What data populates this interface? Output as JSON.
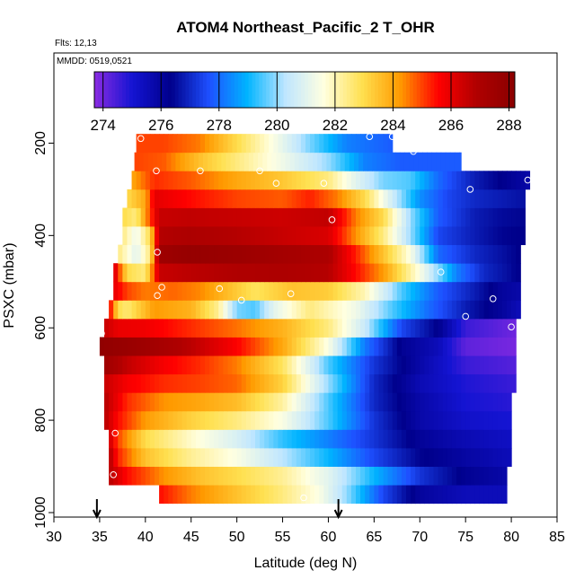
{
  "chart_data": {
    "type": "heatmap",
    "title": "ATOM4 Northeast_Pacific_2 T_OHR",
    "flights_label": "Flts: 12,13",
    "date_label": "MMDD: 0519,0521",
    "xlabel": "Latitude (deg N)",
    "ylabel": "PSXC (mbar)",
    "xlim": [
      30,
      85
    ],
    "ylim": [
      1000,
      0
    ],
    "x_ticks": [
      "30",
      "35",
      "40",
      "45",
      "50",
      "55",
      "60",
      "65",
      "70",
      "75",
      "80",
      "85"
    ],
    "y_ticks": [
      "200",
      "400",
      "600",
      "800",
      "1000"
    ],
    "colorbar": {
      "min": 273.7,
      "max": 288.2,
      "ticks": [
        "274",
        "276",
        "278",
        "280",
        "282",
        "284",
        "286",
        "288"
      ],
      "colors": [
        "#8a2be2",
        "#1414d2",
        "#00008b",
        "#1e50ff",
        "#00b4ff",
        "#bfe6ff",
        "#ffffe0",
        "#ffe050",
        "#ff9a00",
        "#ff0000",
        "#b00000",
        "#8b0000"
      ]
    },
    "bands": [
      {
        "p": 960,
        "xmin": 41.5,
        "xmax": 79.5,
        "nodes": [
          [
            41.5,
            285.5
          ],
          [
            45,
            284.5
          ],
          [
            50,
            283.5
          ],
          [
            55,
            282.5
          ],
          [
            59,
            281.5
          ],
          [
            62,
            280
          ],
          [
            66,
            277.5
          ],
          [
            70,
            276
          ],
          [
            75,
            275.5
          ],
          [
            79.5,
            275.5
          ]
        ]
      },
      {
        "p": 920,
        "xmin": 36,
        "xmax": 79.5,
        "nodes": [
          [
            36,
            286.8
          ],
          [
            38,
            285.5
          ],
          [
            42,
            284.3
          ],
          [
            46,
            283.5
          ],
          [
            50,
            283
          ],
          [
            55,
            282.3
          ],
          [
            60,
            281
          ],
          [
            65,
            279
          ],
          [
            70,
            277.2
          ],
          [
            75,
            276.2
          ],
          [
            79.5,
            275.8
          ]
        ]
      },
      {
        "p": 880,
        "xmin": 36,
        "xmax": 80,
        "nodes": [
          [
            36,
            287
          ],
          [
            37,
            285.3
          ],
          [
            40,
            283.5
          ],
          [
            45,
            282.3
          ],
          [
            50,
            281.5
          ],
          [
            55,
            280.3
          ],
          [
            60,
            279
          ],
          [
            65,
            277.5
          ],
          [
            70,
            276.4
          ],
          [
            75,
            275.9
          ],
          [
            80,
            275.5
          ]
        ]
      },
      {
        "p": 840,
        "xmin": 36,
        "xmax": 80,
        "nodes": [
          [
            36,
            286.5
          ],
          [
            37,
            285
          ],
          [
            40,
            283
          ],
          [
            45,
            281.8
          ],
          [
            50,
            280.8
          ],
          [
            55,
            279.3
          ],
          [
            60,
            278.3
          ],
          [
            65,
            277.2
          ],
          [
            70,
            276.1
          ],
          [
            75,
            275.6
          ],
          [
            80,
            275.3
          ]
        ]
      },
      {
        "p": 800,
        "xmin": 35.5,
        "xmax": 80,
        "nodes": [
          [
            35.5,
            286.8
          ],
          [
            37,
            285.5
          ],
          [
            40,
            284.2
          ],
          [
            45,
            283.2
          ],
          [
            50,
            282.5
          ],
          [
            55,
            281.5
          ],
          [
            60,
            279.5
          ],
          [
            65,
            277.2
          ],
          [
            70,
            275.8
          ],
          [
            75,
            275.2
          ],
          [
            80,
            275
          ]
        ]
      },
      {
        "p": 760,
        "xmin": 35.5,
        "xmax": 80,
        "nodes": [
          [
            35.5,
            286.8
          ],
          [
            38,
            285.2
          ],
          [
            42,
            284.3
          ],
          [
            46,
            284
          ],
          [
            50,
            283.6
          ],
          [
            55,
            282.2
          ],
          [
            60,
            279.5
          ],
          [
            65,
            277
          ],
          [
            70,
            275.8
          ],
          [
            75,
            275
          ],
          [
            80,
            274.8
          ]
        ]
      },
      {
        "p": 720,
        "xmin": 35.5,
        "xmax": 80.5,
        "nodes": [
          [
            35.5,
            286.5
          ],
          [
            38,
            285.7
          ],
          [
            42,
            285.2
          ],
          [
            46,
            285
          ],
          [
            50,
            284.7
          ],
          [
            55,
            283.2
          ],
          [
            60,
            280
          ],
          [
            65,
            277
          ],
          [
            70,
            275.6
          ],
          [
            75,
            274.9
          ],
          [
            80.5,
            274.6
          ]
        ]
      },
      {
        "p": 680,
        "xmin": 35.5,
        "xmax": 80.5,
        "nodes": [
          [
            35.5,
            287.5
          ],
          [
            38,
            286.6
          ],
          [
            42,
            285.7
          ],
          [
            46,
            285.2
          ],
          [
            50,
            284.5
          ],
          [
            55,
            282.8
          ],
          [
            60,
            279.5
          ],
          [
            65,
            277.2
          ],
          [
            70,
            275.8
          ],
          [
            75,
            274.6
          ],
          [
            80.5,
            274.3
          ]
        ]
      },
      {
        "p": 640,
        "xmin": 35,
        "xmax": 80.5,
        "nodes": [
          [
            35,
            288
          ],
          [
            37,
            287.8
          ],
          [
            40,
            287.5
          ],
          [
            45,
            286.7
          ],
          [
            50,
            285.6
          ],
          [
            55,
            284
          ],
          [
            60,
            281.5
          ],
          [
            64,
            278.2
          ],
          [
            68,
            276.2
          ],
          [
            72,
            275.5
          ],
          [
            75,
            274.2
          ],
          [
            80.5,
            273.9
          ]
        ]
      },
      {
        "p": 600,
        "xmin": 35.5,
        "xmax": 80.5,
        "nodes": [
          [
            35.5,
            286.5
          ],
          [
            37,
            285.9
          ],
          [
            40,
            285.8
          ],
          [
            45,
            285.2
          ],
          [
            50,
            284.6
          ],
          [
            55,
            283.8
          ],
          [
            60,
            282.5
          ],
          [
            64,
            280.5
          ],
          [
            68,
            277.5
          ],
          [
            72,
            276.3
          ],
          [
            75,
            274.6
          ],
          [
            80.5,
            274
          ]
        ]
      },
      {
        "p": 560,
        "xmin": 36,
        "xmax": 81,
        "nodes": [
          [
            36,
            286
          ],
          [
            37,
            283
          ],
          [
            38,
            282.6
          ],
          [
            41,
            284.2
          ],
          [
            45,
            283.8
          ],
          [
            48,
            282.3
          ],
          [
            50,
            279.8
          ],
          [
            52,
            279.5
          ],
          [
            54,
            281
          ],
          [
            58,
            282.5
          ],
          [
            63,
            281.3
          ],
          [
            67,
            279.5
          ],
          [
            71,
            278
          ],
          [
            75,
            276.8
          ],
          [
            79,
            276
          ],
          [
            81,
            275.5
          ]
        ]
      },
      {
        "p": 520,
        "xmin": 36.5,
        "xmax": 81,
        "nodes": [
          [
            36.5,
            286
          ],
          [
            38,
            285
          ],
          [
            40,
            284.5
          ],
          [
            43,
            284.7
          ],
          [
            46,
            284.4
          ],
          [
            49,
            283.6
          ],
          [
            52,
            282.8
          ],
          [
            56,
            283.5
          ],
          [
            60,
            283.3
          ],
          [
            64,
            282
          ],
          [
            68,
            279.5
          ],
          [
            72,
            277.8
          ],
          [
            76,
            276.8
          ],
          [
            79,
            276
          ],
          [
            81,
            275.8
          ]
        ]
      },
      {
        "p": 480,
        "xmin": 36.5,
        "xmax": 81,
        "nodes": [
          [
            36.5,
            286.5
          ],
          [
            38,
            283
          ],
          [
            40,
            282.5
          ],
          [
            41.5,
            286.5
          ],
          [
            45,
            286.7
          ],
          [
            50,
            286.9
          ],
          [
            55,
            287
          ],
          [
            60,
            286.8
          ],
          [
            63,
            285.5
          ],
          [
            66,
            284.2
          ],
          [
            70,
            281.5
          ],
          [
            74,
            278.3
          ],
          [
            77,
            277
          ],
          [
            80,
            276.5
          ],
          [
            81,
            276.2
          ]
        ]
      },
      {
        "p": 440,
        "xmin": 37,
        "xmax": 81,
        "nodes": [
          [
            37,
            282.5
          ],
          [
            39,
            281
          ],
          [
            40.5,
            282.5
          ],
          [
            41.5,
            287.5
          ],
          [
            45,
            287.8
          ],
          [
            50,
            287.6
          ],
          [
            55,
            287.3
          ],
          [
            60,
            287
          ],
          [
            63,
            285.3
          ],
          [
            66,
            283.5
          ],
          [
            69,
            281.5
          ],
          [
            72,
            278
          ],
          [
            76,
            277
          ],
          [
            79,
            276.6
          ],
          [
            81,
            276.3
          ]
        ]
      },
      {
        "p": 400,
        "xmin": 37.5,
        "xmax": 81.5,
        "nodes": [
          [
            37.5,
            282.5
          ],
          [
            39,
            281.2
          ],
          [
            40.5,
            283
          ],
          [
            41.5,
            286.8
          ],
          [
            45,
            287
          ],
          [
            50,
            286.8
          ],
          [
            55,
            286.5
          ],
          [
            60,
            286.2
          ],
          [
            63,
            284.3
          ],
          [
            66,
            282.5
          ],
          [
            69,
            280
          ],
          [
            72,
            277.5
          ],
          [
            76,
            276.8
          ],
          [
            79,
            276.4
          ],
          [
            81.5,
            276.3
          ]
        ]
      },
      {
        "p": 360,
        "xmin": 37.5,
        "xmax": 81.5,
        "nodes": [
          [
            37.5,
            283
          ],
          [
            39,
            282.5
          ],
          [
            40.5,
            285
          ],
          [
            41.5,
            286.5
          ],
          [
            45,
            286.6
          ],
          [
            50,
            286.5
          ],
          [
            55,
            286.4
          ],
          [
            60,
            286.6
          ],
          [
            63,
            284.5
          ],
          [
            66,
            283
          ],
          [
            69,
            280
          ],
          [
            72,
            277.8
          ],
          [
            76,
            276.8
          ],
          [
            79,
            276.5
          ],
          [
            81.5,
            276.4
          ]
        ]
      },
      {
        "p": 320,
        "xmin": 38,
        "xmax": 81.5,
        "nodes": [
          [
            38,
            283
          ],
          [
            40,
            284
          ],
          [
            41,
            286
          ],
          [
            45,
            285.5
          ],
          [
            50,
            285
          ],
          [
            55,
            284.8
          ],
          [
            58,
            285.3
          ],
          [
            61,
            284.5
          ],
          [
            64,
            283
          ],
          [
            67,
            280.6
          ],
          [
            70,
            278.5
          ],
          [
            73,
            277.5
          ],
          [
            76,
            277
          ],
          [
            81.5,
            276.6
          ]
        ]
      },
      {
        "p": 280,
        "xmin": 38.5,
        "xmax": 82,
        "nodes": [
          [
            38.5,
            284
          ],
          [
            41,
            285.2
          ],
          [
            45,
            284.8
          ],
          [
            50,
            284
          ],
          [
            55,
            283.4
          ],
          [
            60,
            282.5
          ],
          [
            63,
            281
          ],
          [
            66,
            279.8
          ],
          [
            69,
            279.5
          ],
          [
            72,
            278
          ],
          [
            76,
            276.8
          ],
          [
            82,
            275.8
          ]
        ]
      },
      {
        "p": 240,
        "xmin": 38.8,
        "xmax": 74.5,
        "nodes": [
          [
            38.8,
            285
          ],
          [
            42,
            284.8
          ],
          [
            46,
            283.5
          ],
          [
            50,
            282.5
          ],
          [
            55,
            281.3
          ],
          [
            60,
            280
          ],
          [
            64,
            278.3
          ],
          [
            68,
            277.8
          ],
          [
            74.5,
            277.8
          ]
        ]
      },
      {
        "p": 200,
        "xmin": 39,
        "xmax": 67,
        "nodes": [
          [
            39,
            285
          ],
          [
            42,
            285
          ],
          [
            46,
            284.5
          ],
          [
            50,
            283
          ],
          [
            54,
            281.5
          ],
          [
            58,
            279.8
          ],
          [
            62,
            278.3
          ],
          [
            67,
            277.8
          ]
        ]
      }
    ],
    "observations": [
      [
        39.5,
        190
      ],
      [
        41.2,
        260
      ],
      [
        46,
        260
      ],
      [
        52.5,
        260
      ],
      [
        64.5,
        186
      ],
      [
        67,
        186
      ],
      [
        69.3,
        218
      ],
      [
        54.3,
        287
      ],
      [
        59.5,
        287
      ],
      [
        75.5,
        300
      ],
      [
        81.8,
        280
      ],
      [
        60.4,
        366
      ],
      [
        41.3,
        436
      ],
      [
        72.3,
        479
      ],
      [
        41.8,
        512
      ],
      [
        41.3,
        530
      ],
      [
        48.1,
        515
      ],
      [
        50.5,
        540
      ],
      [
        55.9,
        526
      ],
      [
        78,
        537
      ],
      [
        75,
        575
      ],
      [
        80,
        598
      ],
      [
        35.2,
        612
      ],
      [
        36.7,
        828
      ],
      [
        36.5,
        918
      ],
      [
        36.2,
        955
      ],
      [
        41.5,
        994
      ],
      [
        43,
        994
      ],
      [
        57.3,
        968
      ],
      [
        73.8,
        998
      ],
      [
        79,
        998
      ]
    ],
    "arrows": [
      34.7,
      61.1
    ]
  }
}
